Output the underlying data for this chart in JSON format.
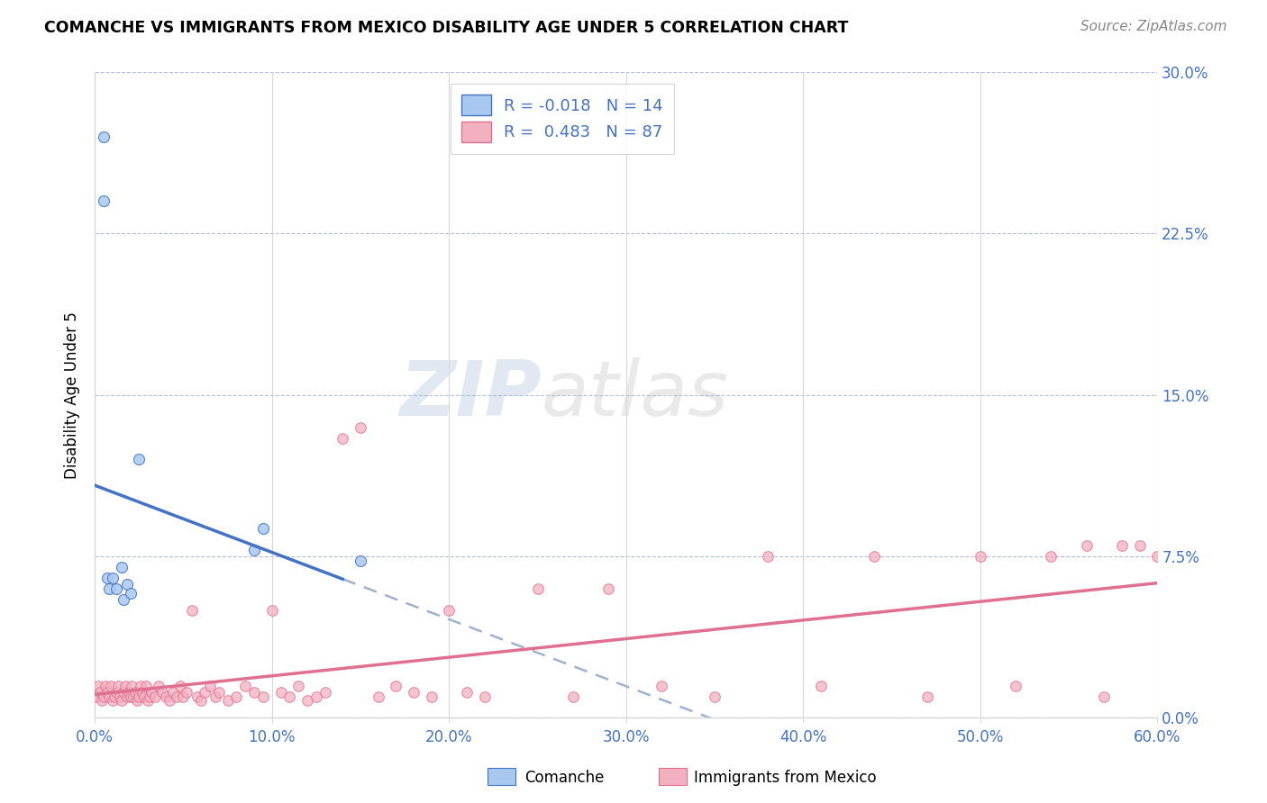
{
  "title": "COMANCHE VS IMMIGRANTS FROM MEXICO DISABILITY AGE UNDER 5 CORRELATION CHART",
  "source": "Source: ZipAtlas.com",
  "ylabel": "Disability Age Under 5",
  "legend_label1": "Comanche",
  "legend_label2": "Immigrants from Mexico",
  "R1": "-0.018",
  "N1": "14",
  "R2": "0.483",
  "N2": "87",
  "color_blue": "#a8c8f0",
  "color_pink": "#f2b0c0",
  "color_blue_dark": "#4472c4",
  "color_pink_dark": "#e07090",
  "text_color": "#4472c4",
  "background": "#ffffff",
  "grid_color": "#d8d8d8",
  "dashed_line_color": "#a0b0d0",
  "comanche_x": [
    0.005,
    0.005,
    0.007,
    0.008,
    0.01,
    0.012,
    0.015,
    0.016,
    0.018,
    0.02,
    0.025,
    0.09,
    0.095,
    0.15
  ],
  "comanche_y": [
    0.27,
    0.24,
    0.065,
    0.06,
    0.065,
    0.06,
    0.07,
    0.055,
    0.062,
    0.058,
    0.12,
    0.078,
    0.088,
    0.073
  ],
  "mexico_x": [
    0.001,
    0.002,
    0.003,
    0.004,
    0.005,
    0.006,
    0.007,
    0.008,
    0.009,
    0.01,
    0.011,
    0.012,
    0.013,
    0.014,
    0.015,
    0.016,
    0.017,
    0.018,
    0.019,
    0.02,
    0.021,
    0.022,
    0.023,
    0.024,
    0.025,
    0.026,
    0.027,
    0.028,
    0.029,
    0.03,
    0.031,
    0.032,
    0.034,
    0.036,
    0.038,
    0.04,
    0.042,
    0.044,
    0.046,
    0.048,
    0.05,
    0.052,
    0.055,
    0.058,
    0.06,
    0.062,
    0.065,
    0.068,
    0.07,
    0.075,
    0.08,
    0.085,
    0.09,
    0.095,
    0.1,
    0.105,
    0.11,
    0.115,
    0.12,
    0.125,
    0.13,
    0.14,
    0.15,
    0.16,
    0.17,
    0.18,
    0.19,
    0.2,
    0.21,
    0.22,
    0.25,
    0.27,
    0.29,
    0.32,
    0.35,
    0.38,
    0.41,
    0.44,
    0.47,
    0.5,
    0.52,
    0.54,
    0.56,
    0.57,
    0.58,
    0.59,
    0.6
  ],
  "mexico_y": [
    0.01,
    0.015,
    0.012,
    0.008,
    0.01,
    0.015,
    0.012,
    0.01,
    0.015,
    0.008,
    0.01,
    0.012,
    0.015,
    0.01,
    0.008,
    0.012,
    0.015,
    0.01,
    0.012,
    0.01,
    0.015,
    0.01,
    0.012,
    0.008,
    0.01,
    0.015,
    0.012,
    0.01,
    0.015,
    0.008,
    0.01,
    0.012,
    0.01,
    0.015,
    0.012,
    0.01,
    0.008,
    0.012,
    0.01,
    0.015,
    0.01,
    0.012,
    0.05,
    0.01,
    0.008,
    0.012,
    0.015,
    0.01,
    0.012,
    0.008,
    0.01,
    0.015,
    0.012,
    0.01,
    0.05,
    0.012,
    0.01,
    0.015,
    0.008,
    0.01,
    0.012,
    0.13,
    0.135,
    0.01,
    0.015,
    0.012,
    0.01,
    0.05,
    0.012,
    0.01,
    0.06,
    0.01,
    0.06,
    0.015,
    0.01,
    0.075,
    0.015,
    0.075,
    0.01,
    0.075,
    0.015,
    0.075,
    0.08,
    0.01,
    0.08,
    0.08,
    0.075
  ],
  "xlim": [
    0.0,
    0.6
  ],
  "ylim": [
    0.0,
    0.3
  ],
  "xticks": [
    0.0,
    0.1,
    0.2,
    0.3,
    0.4,
    0.5,
    0.6
  ],
  "yticks": [
    0.0,
    0.075,
    0.15,
    0.225,
    0.3
  ]
}
